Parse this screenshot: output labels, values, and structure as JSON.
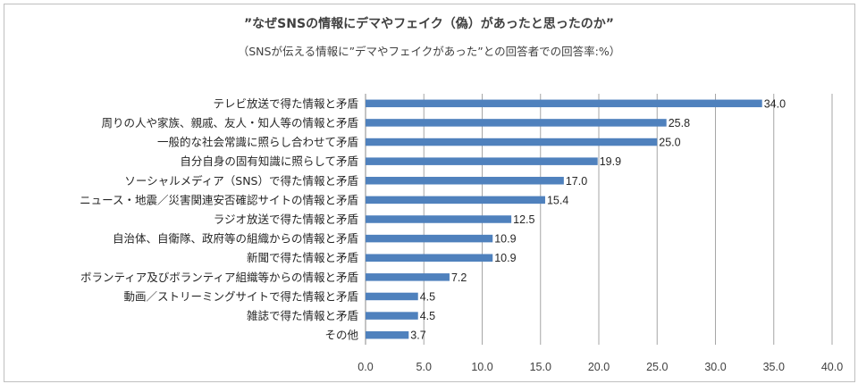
{
  "chart_data": {
    "type": "bar",
    "orientation": "horizontal",
    "title": "”なぜSNSの情報にデマやフェイク（偽）があったと思ったのか”",
    "subtitle": "（SNSが伝える情報に”デマやフェイクがあった”との回答者での回答率:%）",
    "categories": [
      "テレビ放送で得た情報と矛盾",
      "周りの人や家族、親戚、友人・知人等の情報と矛盾",
      "一般的な社会常識に照らし合わせて矛盾",
      "自分自身の固有知識に照らして矛盾",
      "ソーシャルメディア（SNS）で得た情報と矛盾",
      "ニュース・地震／災害関連安否確認サイトの情報と矛盾",
      "ラジオ放送で得た情報と矛盾",
      "自治体、自衛隊、政府等の組織からの情報と矛盾",
      "新聞で得た情報と矛盾",
      "ボランティア及びボランティア組織等からの情報と矛盾",
      "動画／ストリーミングサイトで得た情報と矛盾",
      "雑誌で得た情報と矛盾",
      "その他"
    ],
    "values": [
      34.0,
      25.8,
      25.0,
      19.9,
      17.0,
      15.4,
      12.5,
      10.9,
      10.9,
      7.2,
      4.5,
      4.5,
      3.7
    ],
    "data_labels": [
      "34.0",
      "25.8",
      "25.0",
      "19.9",
      "17.0",
      "15.4",
      "12.5",
      "10.9",
      "10.9",
      "7.2",
      "4.5",
      "4.5",
      "3.7"
    ],
    "xlim": [
      0,
      40
    ],
    "xticks": [
      "0.0",
      "5.0",
      "10.0",
      "15.0",
      "20.0",
      "25.0",
      "30.0",
      "35.0",
      "40.0"
    ],
    "bar_color": "#4f81bd",
    "grid_color": "#a6a6a6",
    "grid": true,
    "legend": "none"
  }
}
